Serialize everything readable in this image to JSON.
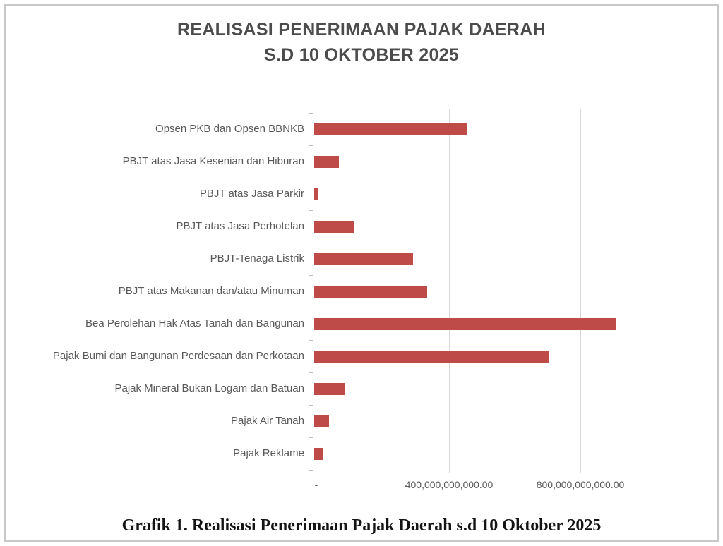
{
  "title": {
    "line1": "REALISASI PENERIMAAN PAJAK DAERAH",
    "line2": "S.D 10 OKTOBER 2025"
  },
  "caption": "Grafik 1. Realisasi Penerimaan Pajak Daerah s.d 10 Oktober 2025",
  "chart_data": {
    "type": "bar",
    "orientation": "horizontal",
    "title": "REALISASI PENERIMAAN PAJAK DAERAH S.D 10 OKTOBER 2025",
    "categories": [
      "Opsen PKB dan Opsen BBNKB",
      "PBJT atas Jasa Kesenian dan Hiburan",
      "PBJT atas Jasa Parkir",
      "PBJT atas Jasa Perhotelan",
      "PBJT-Tenaga Listrik",
      "PBJT atas Makanan dan/atau Minuman",
      "Bea Perolehan Hak Atas Tanah dan Bangunan",
      "Pajak Bumi dan Bangunan Perdesaan dan Perkotaan",
      "Pajak Mineral Bukan Logam dan Batuan",
      "Pajak Air Tanah",
      "Pajak Reklame"
    ],
    "values": [
      465000000000,
      75000000000,
      11000000000,
      120000000000,
      300000000000,
      345000000000,
      920000000000,
      715000000000,
      95000000000,
      45000000000,
      25000000000
    ],
    "x_ticks": [
      {
        "value": 0,
        "label": "-"
      },
      {
        "value": 400000000000,
        "label": "400,000,000,000.00"
      },
      {
        "value": 800000000000,
        "label": "800,000,000,000.00"
      }
    ],
    "xlim": [
      0,
      1220000000000
    ],
    "grid": true,
    "legend": false,
    "bar_color": "#BE4B47",
    "gridline_color": "#D9D9D9",
    "axis_color": "#BFBFBF",
    "text_color": "#595959"
  }
}
